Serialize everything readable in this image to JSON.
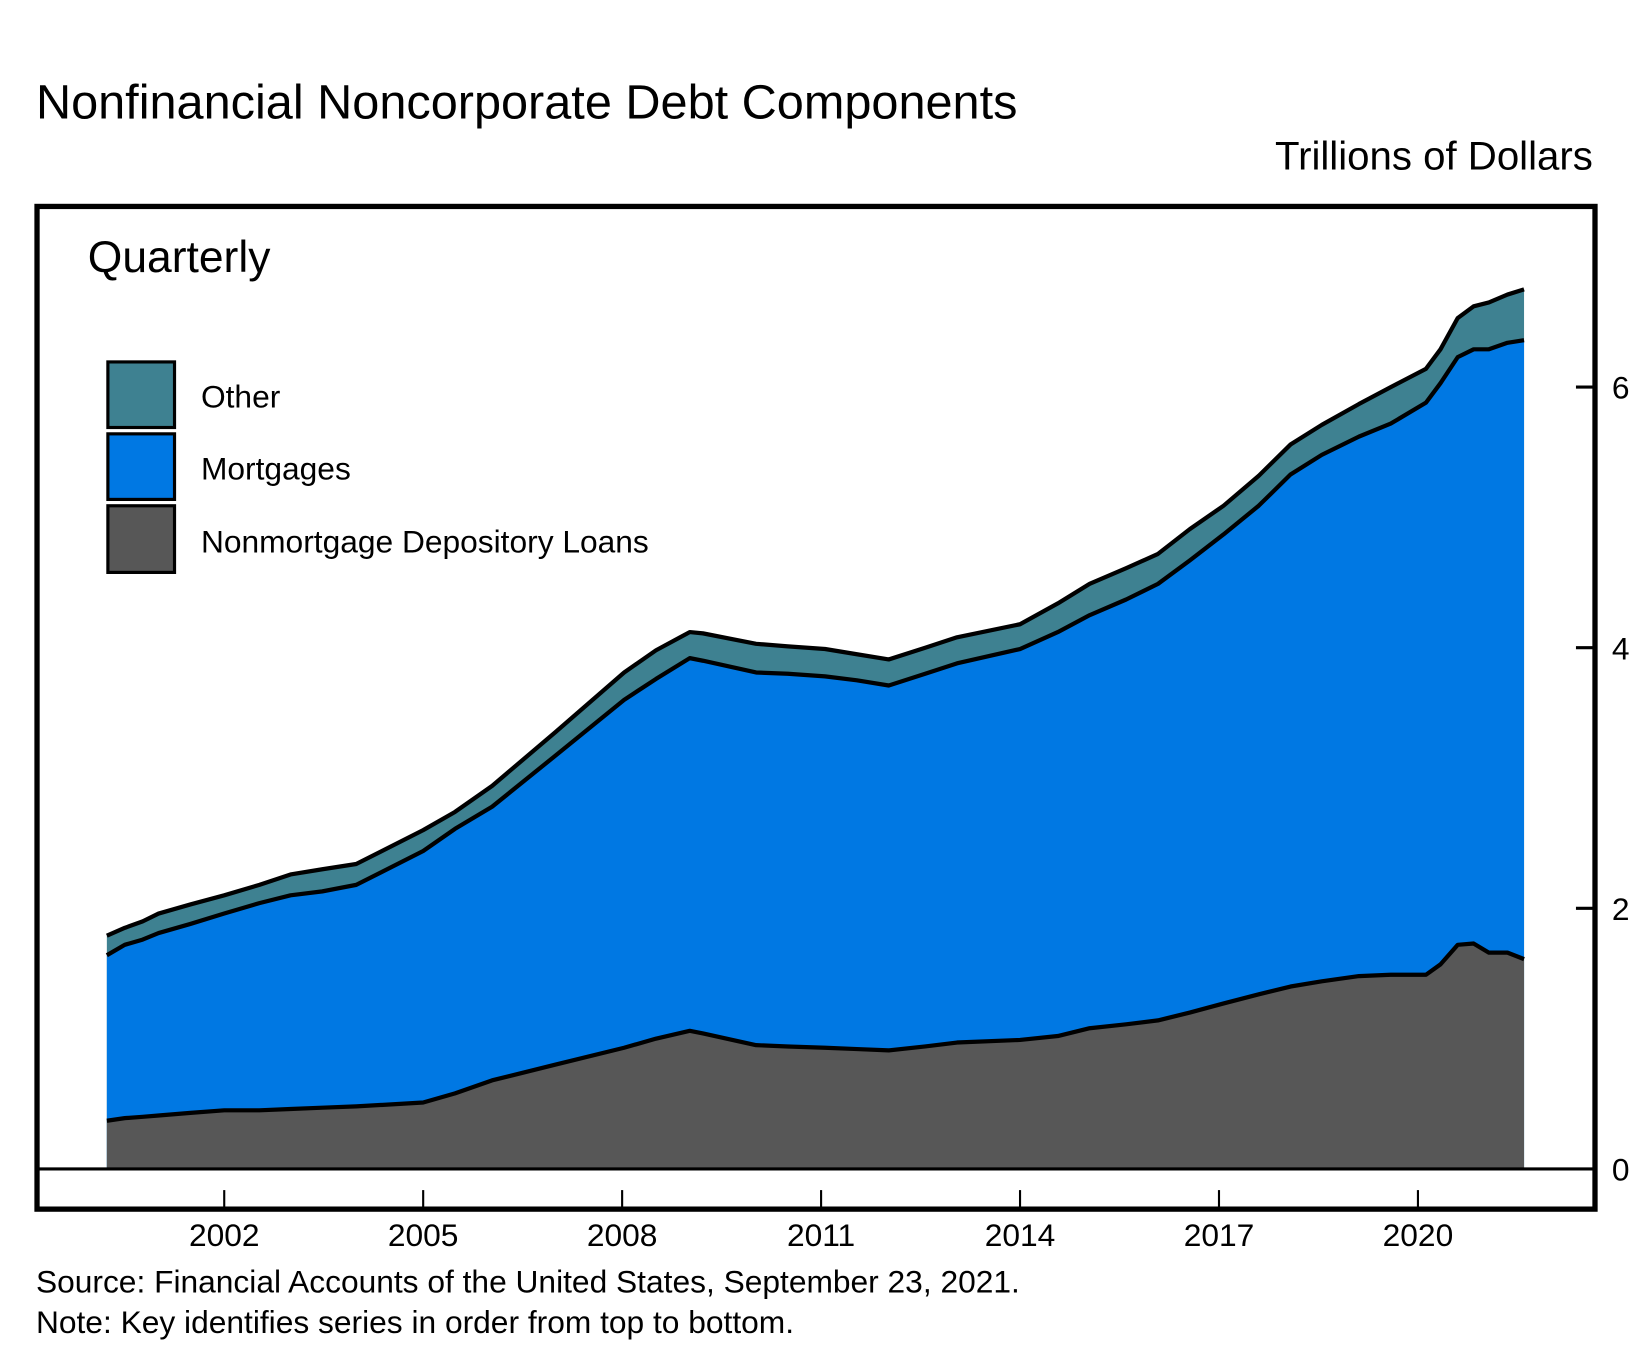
{
  "chart_data": {
    "type": "area",
    "stacked": true,
    "title": "Nonfinancial Noncorporate Debt Components",
    "units_label": "Trillions of Dollars",
    "frequency_label": "Quarterly",
    "source": "Source: Financial Accounts of the United States, September 23, 2021.",
    "note": "Note: Key identifies series in order from top to bottom.",
    "xlim": [
      1999.8,
      2022.4
    ],
    "ylim": [
      0,
      7.5
    ],
    "x_ticks": [
      2002,
      2005,
      2008,
      2011,
      2014,
      2017,
      2020
    ],
    "x_tick_labels": [
      "2002",
      "2005",
      "2008",
      "2011",
      "2014",
      "2017",
      "2020"
    ],
    "y_ticks": [
      0,
      2,
      4,
      6
    ],
    "y_tick_labels": [
      "0",
      "2",
      "4",
      "6"
    ],
    "y_axis_side": "right",
    "grid": false,
    "legend_placement": "top-left",
    "x": [
      2000.23,
      2000.5,
      2000.77,
      2001.01,
      2001.49,
      2002.0,
      2002.53,
      2003.0,
      2003.48,
      2003.99,
      2005.0,
      2005.48,
      2006.04,
      2006.99,
      2008.03,
      2008.51,
      2009.02,
      2009.22,
      2010.02,
      2010.5,
      2011.06,
      2011.54,
      2012.02,
      2012.57,
      2013.05,
      2014.0,
      2014.57,
      2015.05,
      2015.6,
      2016.08,
      2016.56,
      2017.07,
      2017.6,
      2018.08,
      2018.55,
      2019.11,
      2019.59,
      2020.12,
      2020.34,
      2020.6,
      2020.84,
      2021.07,
      2021.35,
      2021.6
    ],
    "series": [
      {
        "name": "Other",
        "color": "#3e8191",
        "cumulative_top": [
          1.79,
          1.85,
          1.9,
          1.96,
          2.03,
          2.1,
          2.18,
          2.26,
          2.3,
          2.34,
          2.6,
          2.74,
          2.94,
          3.35,
          3.81,
          3.98,
          4.12,
          4.11,
          4.03,
          4.01,
          3.99,
          3.95,
          3.91,
          4.0,
          4.08,
          4.18,
          4.34,
          4.49,
          4.61,
          4.72,
          4.91,
          5.09,
          5.32,
          5.56,
          5.71,
          5.87,
          6.0,
          6.14,
          6.29,
          6.53,
          6.62,
          6.65,
          6.71,
          6.75
        ]
      },
      {
        "name": "Mortgages",
        "color": "#0078e3",
        "cumulative_top": [
          1.64,
          1.72,
          1.76,
          1.81,
          1.88,
          1.96,
          2.04,
          2.1,
          2.13,
          2.18,
          2.44,
          2.61,
          2.78,
          3.17,
          3.6,
          3.76,
          3.92,
          3.9,
          3.81,
          3.8,
          3.78,
          3.75,
          3.71,
          3.8,
          3.88,
          3.99,
          4.12,
          4.25,
          4.37,
          4.49,
          4.67,
          4.87,
          5.09,
          5.33,
          5.48,
          5.62,
          5.72,
          5.88,
          6.03,
          6.23,
          6.29,
          6.29,
          6.34,
          6.36
        ]
      },
      {
        "name": "Nonmortgage Depository Loans",
        "color": "#575757",
        "cumulative_top": [
          0.37,
          0.39,
          0.4,
          0.41,
          0.43,
          0.45,
          0.45,
          0.46,
          0.47,
          0.48,
          0.51,
          0.58,
          0.68,
          0.8,
          0.93,
          1.0,
          1.06,
          1.04,
          0.95,
          0.94,
          0.93,
          0.92,
          0.91,
          0.94,
          0.97,
          0.99,
          1.02,
          1.08,
          1.11,
          1.14,
          1.2,
          1.27,
          1.34,
          1.4,
          1.44,
          1.48,
          1.49,
          1.49,
          1.57,
          1.72,
          1.73,
          1.66,
          1.66,
          1.61
        ]
      }
    ]
  }
}
